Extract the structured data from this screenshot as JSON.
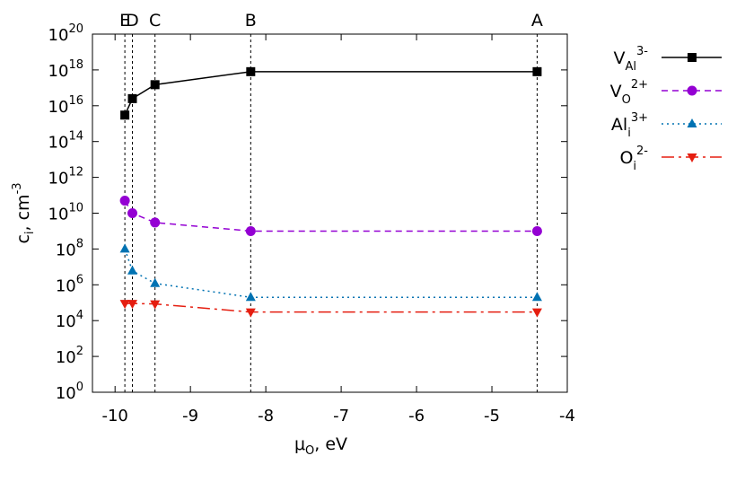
{
  "chart_data": {
    "type": "line",
    "xlabel": {
      "base": "μ",
      "sub": "O",
      "rest": ", eV"
    },
    "ylabel": {
      "base": "c",
      "sub": "i",
      "rest": ", cm",
      "sup": "-3"
    },
    "xlim": [
      -10.3,
      -4
    ],
    "ylim_log10": [
      0,
      20
    ],
    "yscale": "log",
    "x_ticks": [
      "-10",
      "-9",
      "-8",
      "-7",
      "-6",
      "-5",
      "-4"
    ],
    "y_ticks": [
      {
        "base": "10",
        "exp": "0"
      },
      {
        "base": "10",
        "exp": "2"
      },
      {
        "base": "10",
        "exp": "4"
      },
      {
        "base": "10",
        "exp": "6"
      },
      {
        "base": "10",
        "exp": "8"
      },
      {
        "base": "10",
        "exp": "10"
      },
      {
        "base": "10",
        "exp": "12"
      },
      {
        "base": "10",
        "exp": "14"
      },
      {
        "base": "10",
        "exp": "16"
      },
      {
        "base": "10",
        "exp": "18"
      },
      {
        "base": "10",
        "exp": "20"
      }
    ],
    "vertical_markers": [
      {
        "label": "E",
        "x": -9.87
      },
      {
        "label": "D",
        "x": -9.77
      },
      {
        "label": "C",
        "x": -9.47
      },
      {
        "label": "B",
        "x": -8.2
      },
      {
        "label": "A",
        "x": -4.4
      }
    ],
    "x": [
      -9.87,
      -9.77,
      -9.47,
      -8.2,
      -4.4
    ],
    "series": [
      {
        "name": {
          "base": "V",
          "sub": "Al",
          "sup": "3-"
        },
        "color": "#000000",
        "dash": "solid",
        "marker": "square",
        "values": [
          "3e15",
          "2.5e16",
          "1.5e17",
          "8e17",
          "8e17"
        ]
      },
      {
        "name": {
          "base": "V",
          "sub": "O",
          "sup": "2+"
        },
        "color": "#9400d3",
        "dash": "dashed",
        "marker": "circle",
        "values": [
          "5e10",
          "1e10",
          "3e9",
          "1e9",
          "1e9"
        ]
      },
      {
        "name": {
          "base": "Al",
          "sub": "i",
          "sup": "3+"
        },
        "color": "#0072b2",
        "dash": "dotted",
        "marker": "triangle-up",
        "values": [
          "1e8",
          "6e6",
          "1.2e6",
          "2e5",
          "2e5"
        ]
      },
      {
        "name": {
          "base": "O",
          "sub": "i",
          "sup": "2-"
        },
        "color": "#e51e10",
        "dash": "dashdot",
        "marker": "triangle-down",
        "values": [
          "9e4",
          "9e4",
          "8.5e4",
          "3e4",
          "3e4"
        ]
      }
    ],
    "legend_position": "outside-right",
    "grid": false
  }
}
